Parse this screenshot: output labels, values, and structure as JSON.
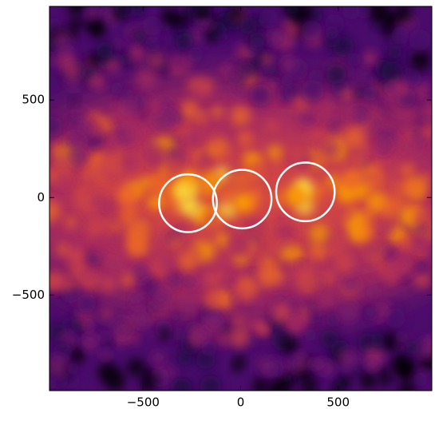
{
  "chart_data": {
    "type": "heatmap",
    "colormap": "inferno",
    "xlim": [
      -980,
      980
    ],
    "ylim": [
      -990,
      980
    ],
    "xticks": [
      {
        "value": -500,
        "label": "−500"
      },
      0,
      500
    ],
    "yticks": [
      500,
      0,
      {
        "value": -500,
        "label": "−500"
      }
    ],
    "circles": {
      "color": "#ffffff",
      "x": [
        -270,
        8,
        332
      ],
      "y": [
        -29,
        -8,
        29
      ],
      "r": [
        148,
        150,
        150
      ]
    }
  }
}
